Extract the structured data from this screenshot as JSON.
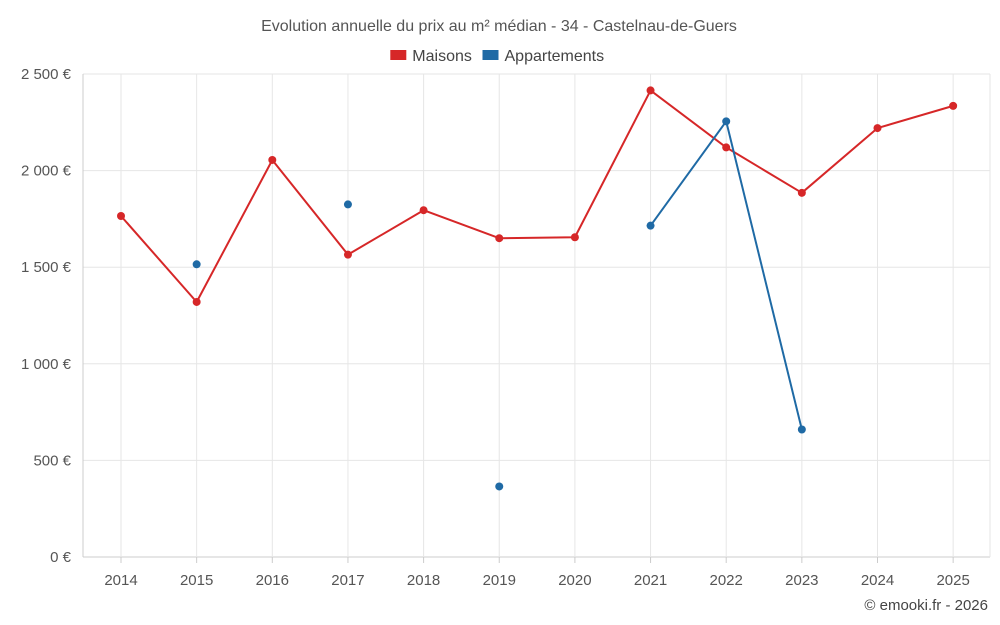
{
  "chart_data": {
    "type": "line",
    "title": "Evolution annuelle du prix au m² médian - 34 - Castelnau-de-Guers",
    "categories": [
      "2014",
      "2015",
      "2016",
      "2017",
      "2018",
      "2019",
      "2020",
      "2021",
      "2022",
      "2023",
      "2024",
      "2025"
    ],
    "ylim": [
      0,
      2500
    ],
    "yticks": [
      0,
      500,
      1000,
      1500,
      2000,
      2500
    ],
    "ytick_labels": [
      "0 €",
      "500 €",
      "1 000 €",
      "1 500 €",
      "2 000 €",
      "2 500 €"
    ],
    "grid": true,
    "legend_position": "top-center",
    "series": [
      {
        "name": "Maisons",
        "color": "#d62728",
        "values": [
          1765,
          1320,
          2055,
          1565,
          1795,
          1650,
          1655,
          2415,
          2120,
          1885,
          2220,
          2335
        ]
      },
      {
        "name": "Appartements",
        "color": "#1f6aa5",
        "values": [
          null,
          1515,
          null,
          1825,
          null,
          365,
          null,
          1715,
          2255,
          660,
          null,
          null
        ]
      }
    ],
    "credit": "© emooki.fr - 2026"
  }
}
